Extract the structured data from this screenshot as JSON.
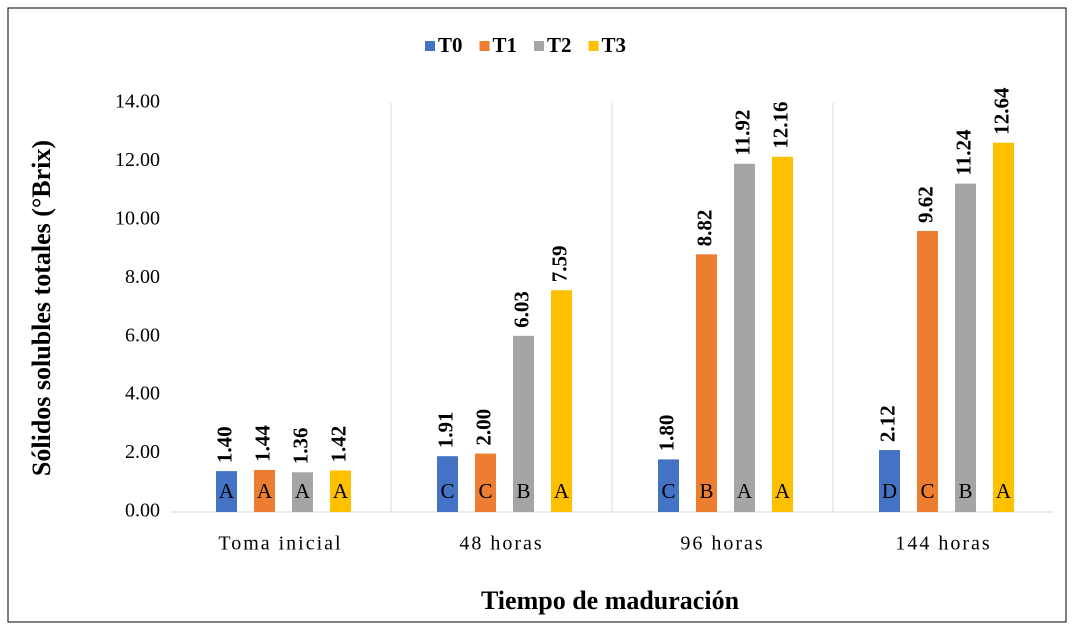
{
  "chart_data": {
    "type": "bar",
    "x_label": "Tiempo de maduración",
    "y_label": "Sólidos solubles totales (°Brix)",
    "categories": [
      "Toma inicial",
      "48 horas",
      "96 horas",
      "144 horas"
    ],
    "series": [
      {
        "name": "T0",
        "color": "#4472c4",
        "values": [
          1.4,
          1.91,
          1.8,
          2.12
        ],
        "value_labels": [
          "1.40",
          "1.91",
          "1.80",
          "2.12"
        ],
        "letters": [
          "A",
          "C",
          "C",
          "D"
        ]
      },
      {
        "name": "T1",
        "color": "#ed7d31",
        "values": [
          1.44,
          2.0,
          8.82,
          9.62
        ],
        "value_labels": [
          "1.44",
          "2.00",
          "8.82",
          "9.62"
        ],
        "letters": [
          "A",
          "C",
          "B",
          "C"
        ]
      },
      {
        "name": "T2",
        "color": "#a5a5a5",
        "values": [
          1.36,
          6.03,
          11.92,
          11.24
        ],
        "value_labels": [
          "1.36",
          "6.03",
          "11.92",
          "11.24"
        ],
        "letters": [
          "A",
          "B",
          "A",
          "B"
        ]
      },
      {
        "name": "T3",
        "color": "#ffc000",
        "values": [
          1.42,
          7.59,
          12.16,
          12.64
        ],
        "value_labels": [
          "1.42",
          "7.59",
          "12.16",
          "12.64"
        ],
        "letters": [
          "A",
          "A",
          "A",
          "A"
        ]
      }
    ],
    "ylim": [
      0,
      14
    ],
    "yticks": [
      {
        "value": 0,
        "label": "0.00"
      },
      {
        "value": 2,
        "label": "2.00"
      },
      {
        "value": 4,
        "label": "4.00"
      },
      {
        "value": 6,
        "label": "6.00"
      },
      {
        "value": 8,
        "label": "8.00"
      },
      {
        "value": 10,
        "label": "10.00"
      },
      {
        "value": 12,
        "label": "12.00"
      },
      {
        "value": 14,
        "label": "14.00"
      }
    ],
    "legend": "top"
  }
}
